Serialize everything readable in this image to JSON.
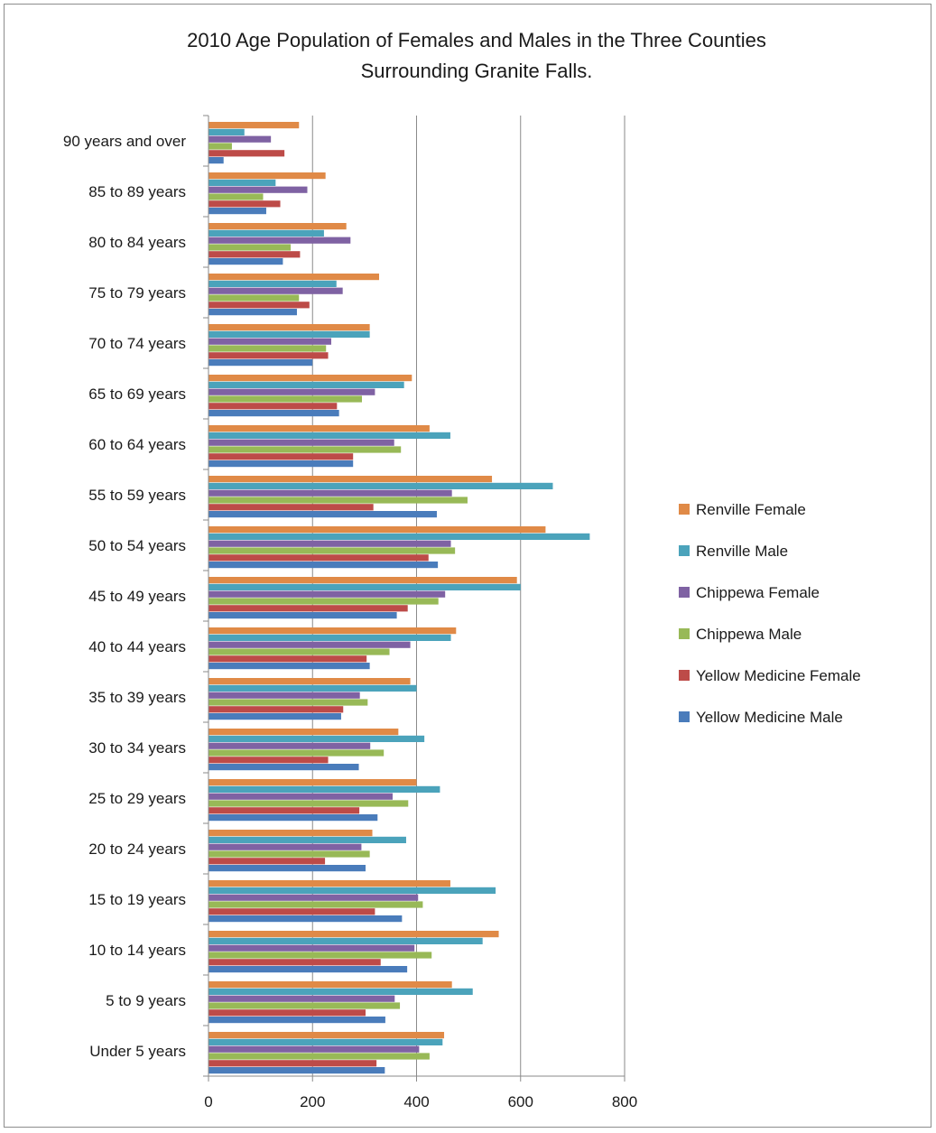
{
  "chart_data": {
    "type": "bar",
    "orientation": "horizontal",
    "title": [
      "2010 Age Population of Females and Males in the Three Counties",
      "Surrounding Granite Falls."
    ],
    "xlim": [
      0,
      800
    ],
    "xticks": [
      "0",
      "200",
      "400",
      "600",
      "800"
    ],
    "xtick_values": [
      0,
      200,
      400,
      600,
      800
    ],
    "grid": true,
    "legend_position": "right",
    "categories": [
      "90 years and over",
      "85 to 89 years",
      "80 to 84 years",
      "75 to 79 years",
      "70 to 74 years",
      "65 to 69 years",
      "60 to 64 years",
      "55 to 59 years",
      "50 to 54 years",
      "45 to 49 years",
      "40 to 44 years",
      "35 to 39 years",
      "30 to 34 years",
      "25 to 29 years",
      "20 to 24 years",
      "15 to 19 years",
      "10 to 14 years",
      "5 to 9 years",
      "Under 5 years"
    ],
    "series": [
      {
        "name": "Renville Female",
        "color": "#e08a47",
        "values": [
          174,
          225,
          265,
          328,
          310,
          391,
          425,
          545,
          648,
          593,
          476,
          388,
          365,
          400,
          315,
          465,
          558,
          468,
          453
        ]
      },
      {
        "name": "Renville Male",
        "color": "#4ba3bb",
        "values": [
          69,
          129,
          222,
          246,
          310,
          376,
          465,
          662,
          733,
          600,
          466,
          400,
          415,
          445,
          380,
          552,
          527,
          508,
          450
        ]
      },
      {
        "name": "Chippewa Female",
        "color": "#7f62a3",
        "values": [
          120,
          190,
          273,
          258,
          236,
          320,
          357,
          468,
          466,
          455,
          388,
          291,
          311,
          354,
          294,
          403,
          396,
          358,
          405
        ]
      },
      {
        "name": "Chippewa Male",
        "color": "#98b957",
        "values": [
          45,
          105,
          158,
          174,
          226,
          295,
          370,
          498,
          474,
          442,
          348,
          306,
          337,
          384,
          310,
          412,
          429,
          368,
          425
        ]
      },
      {
        "name": "Yellow Medicine Female",
        "color": "#bd4b48",
        "values": [
          146,
          138,
          176,
          194,
          230,
          247,
          278,
          317,
          423,
          383,
          304,
          259,
          230,
          290,
          224,
          320,
          331,
          302,
          323
        ]
      },
      {
        "name": "Yellow Medicine Male",
        "color": "#4a7cbb",
        "values": [
          29,
          111,
          143,
          170,
          200,
          251,
          278,
          439,
          441,
          362,
          310,
          255,
          289,
          325,
          302,
          372,
          382,
          340,
          339
        ]
      }
    ]
  }
}
